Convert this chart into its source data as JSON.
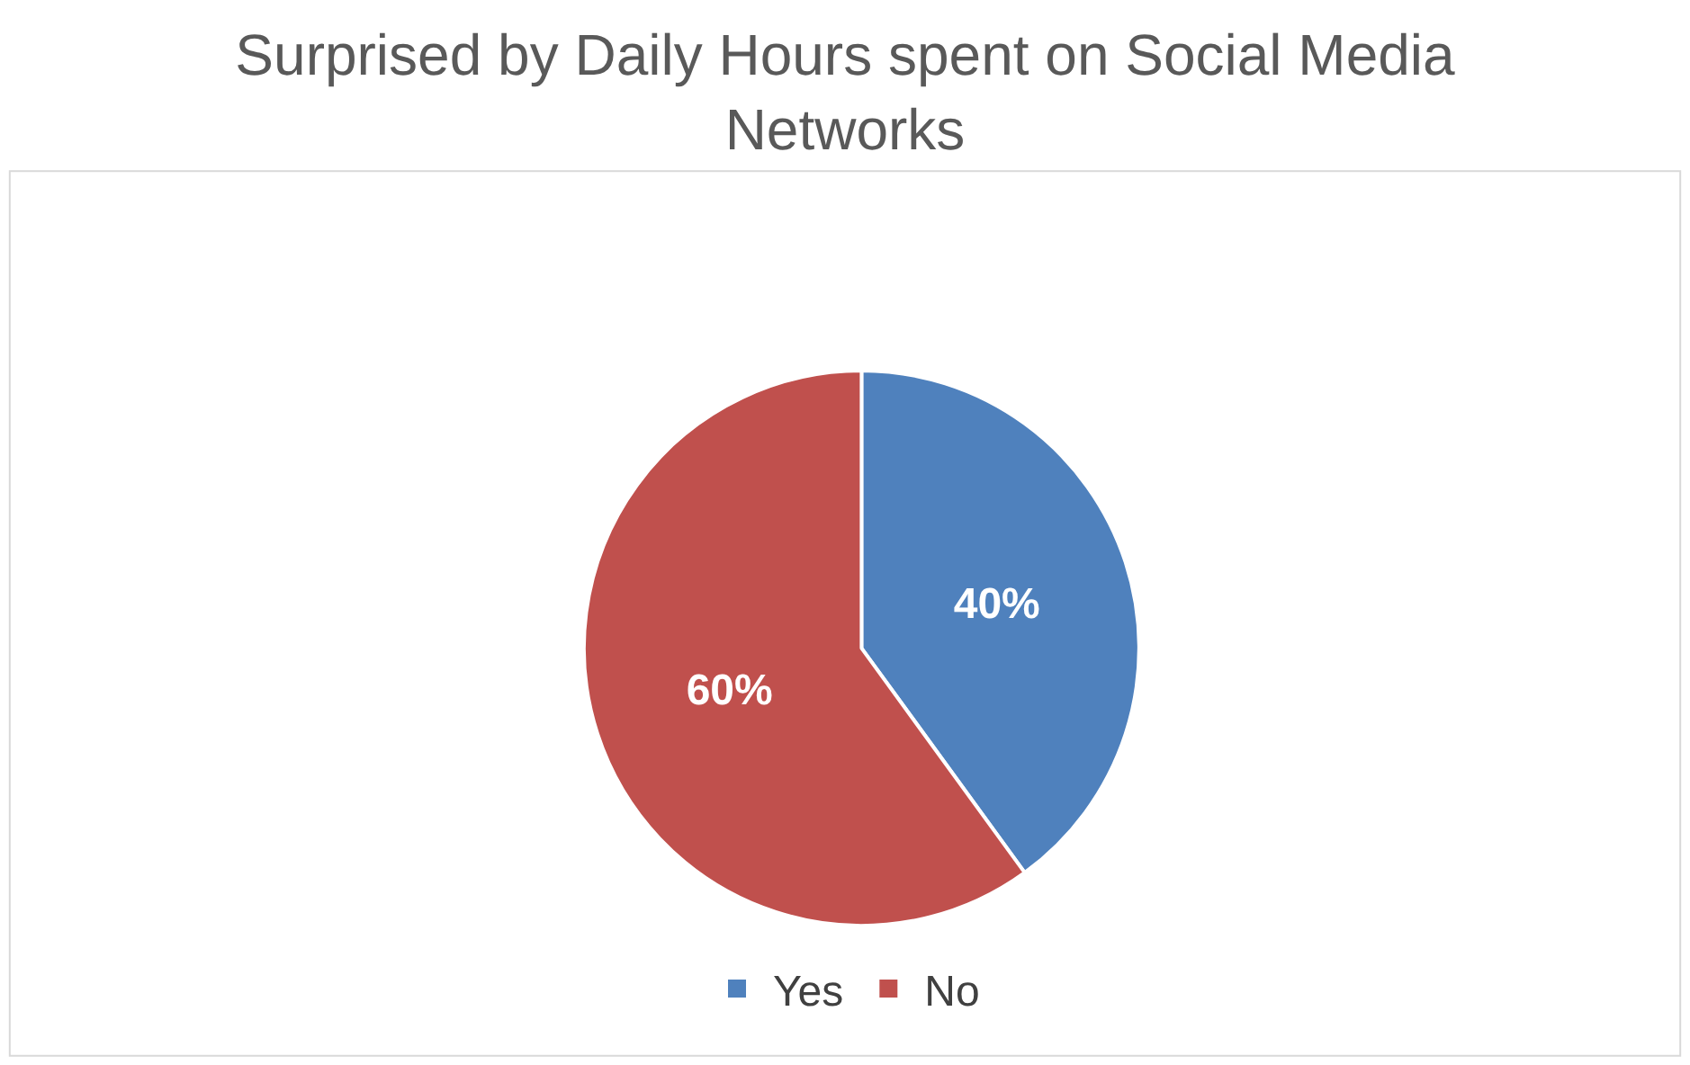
{
  "chart_data": {
    "type": "pie",
    "title": "Surprised by Daily Hours spent on Social Media Networks",
    "categories": [
      "Yes",
      "No"
    ],
    "values": [
      40,
      60
    ],
    "colors": [
      "#4f81bd",
      "#c0504d"
    ],
    "value_labels": [
      "40%",
      "60%"
    ],
    "legend": "bottom"
  }
}
